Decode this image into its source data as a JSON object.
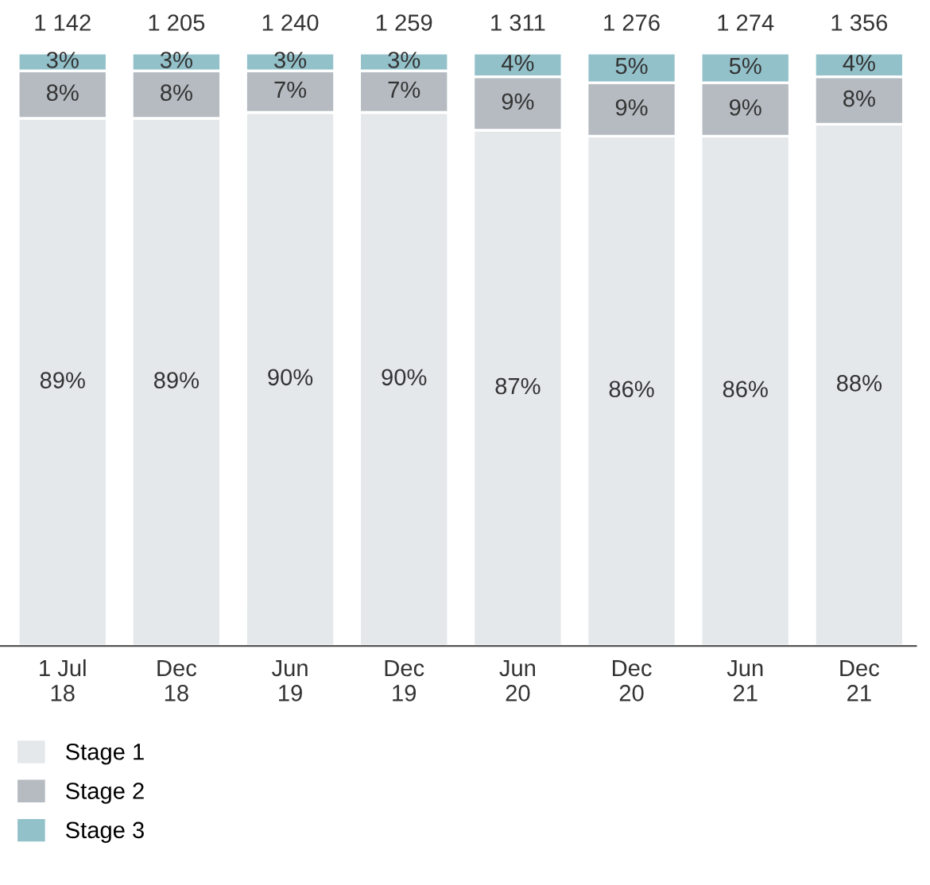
{
  "chart_data": {
    "type": "bar",
    "stacked": true,
    "legend": "bottom",
    "categories": [
      "1 Jul\n18",
      "Dec\n18",
      "Jun\n19",
      "Dec\n19",
      "Jun\n20",
      "Dec\n20",
      "Jun\n21",
      "Dec\n21"
    ],
    "series": [
      {
        "name": "Stage 1",
        "color": "#e4e8eb",
        "values": [
          89,
          89,
          90,
          90,
          87,
          86,
          86,
          88
        ],
        "value_labels": [
          "89%",
          "89%",
          "90%",
          "90%",
          "87%",
          "86%",
          "86%",
          "88%"
        ]
      },
      {
        "name": "Stage 2",
        "color": "#b5bbc1",
        "values": [
          8,
          8,
          7,
          7,
          9,
          9,
          9,
          8
        ],
        "value_labels": [
          "8%",
          "8%",
          "7%",
          "7%",
          "9%",
          "9%",
          "9%",
          "8%"
        ]
      },
      {
        "name": "Stage 3",
        "color": "#93c1ca",
        "values": [
          3,
          3,
          3,
          3,
          4,
          5,
          5,
          4
        ],
        "value_labels": [
          "3%",
          "3%",
          "3%",
          "3%",
          "4%",
          "5%",
          "5%",
          "4%"
        ]
      }
    ],
    "annotations": [
      "1 142",
      "1 205",
      "1 240",
      "1 259",
      "1 311",
      "1 276",
      "1 274",
      "1 356"
    ]
  }
}
